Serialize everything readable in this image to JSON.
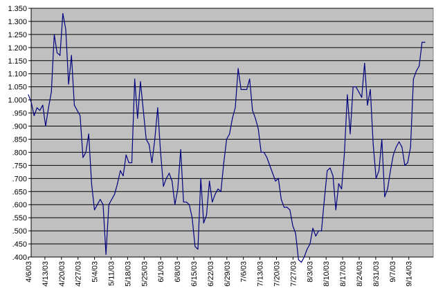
{
  "chart_data": {
    "type": "line",
    "title": "",
    "xlabel": "",
    "ylabel": "",
    "ylim": [
      0.4,
      1.35
    ],
    "grid": true,
    "legend": "none",
    "colors": {
      "plot_background": "#c0c0c0",
      "grid": "#000000",
      "line": "#000080"
    },
    "y_ticks": [
      ".400",
      ".450",
      ".500",
      ".550",
      ".600",
      ".650",
      ".700",
      ".750",
      ".800",
      ".850",
      ".900",
      ".950",
      "1.000",
      "1.050",
      "1.100",
      "1.150",
      "1.200",
      "1.250",
      "1.300",
      "1.350"
    ],
    "y_tick_values": [
      0.4,
      0.45,
      0.5,
      0.55,
      0.6,
      0.65,
      0.7,
      0.75,
      0.8,
      0.85,
      0.9,
      0.95,
      1.0,
      1.05,
      1.1,
      1.15,
      1.2,
      1.25,
      1.3,
      1.35
    ],
    "x_ticks": [
      "4/6/03",
      "4/13/03",
      "4/20/03",
      "4/27/03",
      "5/4/03",
      "5/11/03",
      "5/18/03",
      "5/25/03",
      "6/1/03",
      "6/8/03",
      "6/15/03",
      "6/22/03",
      "6/29/03",
      "7/6/03",
      "7/13/03",
      "7/20/03",
      "7/27/03",
      "8/3/03",
      "8/10/03",
      "8/17/03",
      "8/24/03",
      "8/31/03",
      "9/7/03",
      "9/14/03"
    ],
    "series": [
      {
        "values": [
          1.02,
          0.99,
          0.94,
          0.97,
          0.96,
          0.98,
          0.9,
          0.97,
          1.03,
          1.25,
          1.18,
          1.17,
          1.33,
          1.27,
          1.06,
          1.17,
          0.98,
          0.96,
          0.94,
          0.78,
          0.8,
          0.87,
          0.68,
          0.58,
          0.6,
          0.62,
          0.6,
          0.41,
          0.6,
          0.62,
          0.64,
          0.68,
          0.73,
          0.71,
          0.79,
          0.76,
          0.76,
          1.08,
          0.93,
          1.07,
          0.96,
          0.85,
          0.83,
          0.76,
          0.85,
          0.97,
          0.8,
          0.67,
          0.7,
          0.72,
          0.69,
          0.6,
          0.66,
          0.81,
          0.61,
          0.61,
          0.6,
          0.55,
          0.44,
          0.43,
          0.7,
          0.53,
          0.56,
          0.69,
          0.61,
          0.64,
          0.66,
          0.65,
          0.76,
          0.85,
          0.87,
          0.93,
          0.97,
          1.12,
          1.04,
          1.04,
          1.04,
          1.08,
          0.96,
          0.93,
          0.89,
          0.8,
          0.8,
          0.78,
          0.75,
          0.72,
          0.69,
          0.7,
          0.62,
          0.59,
          0.59,
          0.58,
          0.52,
          0.49,
          0.39,
          0.38,
          0.4,
          0.43,
          0.45,
          0.51,
          0.48,
          0.5,
          0.5,
          0.62,
          0.73,
          0.74,
          0.71,
          0.58,
          0.68,
          0.66,
          0.8,
          1.02,
          0.87,
          1.05,
          1.05,
          1.03,
          1.01,
          1.14,
          0.98,
          1.04,
          0.83,
          0.7,
          0.73,
          0.85,
          0.63,
          0.66,
          0.73,
          0.79,
          0.82,
          0.84,
          0.82,
          0.75,
          0.76,
          0.82,
          1.08,
          1.11,
          1.13,
          1.22,
          1.22
        ]
      }
    ]
  }
}
